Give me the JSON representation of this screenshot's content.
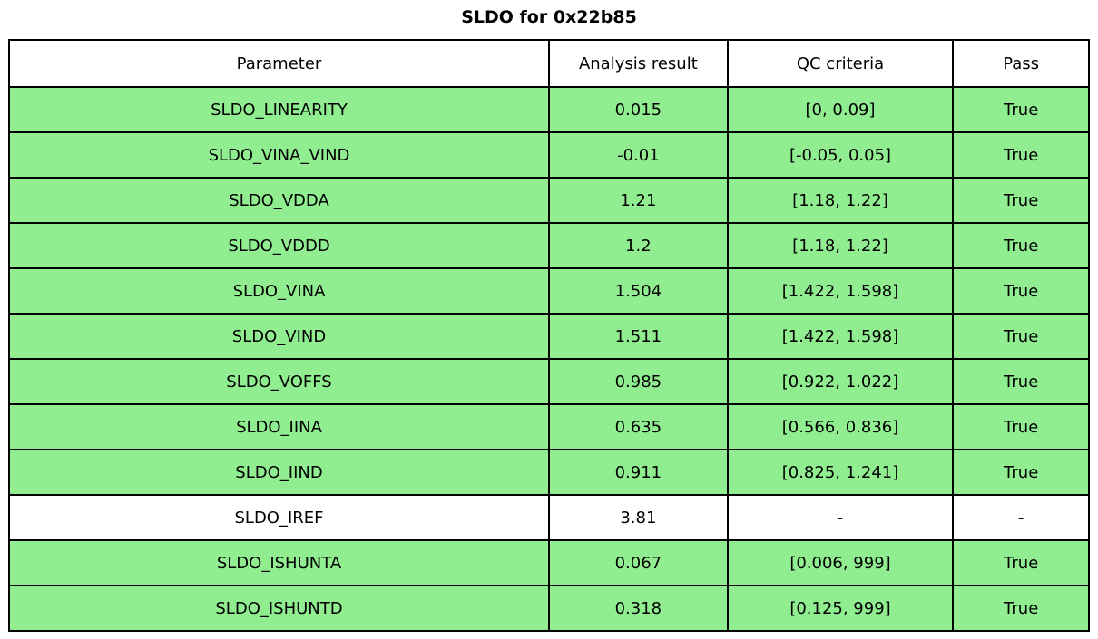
{
  "chart_data": {
    "type": "table",
    "title": "SLDO for 0x22b85",
    "columns": [
      "Parameter",
      "Analysis result",
      "QC criteria",
      "Pass"
    ],
    "rows": [
      {
        "parameter": "SLDO_LINEARITY",
        "result": "0.015",
        "criteria": "[0, 0.09]",
        "pass": "True",
        "highlight": true
      },
      {
        "parameter": "SLDO_VINA_VIND",
        "result": "-0.01",
        "criteria": "[-0.05, 0.05]",
        "pass": "True",
        "highlight": true
      },
      {
        "parameter": "SLDO_VDDA",
        "result": "1.21",
        "criteria": "[1.18, 1.22]",
        "pass": "True",
        "highlight": true
      },
      {
        "parameter": "SLDO_VDDD",
        "result": "1.2",
        "criteria": "[1.18, 1.22]",
        "pass": "True",
        "highlight": true
      },
      {
        "parameter": "SLDO_VINA",
        "result": "1.504",
        "criteria": "[1.422, 1.598]",
        "pass": "True",
        "highlight": true
      },
      {
        "parameter": "SLDO_VIND",
        "result": "1.511",
        "criteria": "[1.422, 1.598]",
        "pass": "True",
        "highlight": true
      },
      {
        "parameter": "SLDO_VOFFS",
        "result": "0.985",
        "criteria": "[0.922, 1.022]",
        "pass": "True",
        "highlight": true
      },
      {
        "parameter": "SLDO_IINA",
        "result": "0.635",
        "criteria": "[0.566, 0.836]",
        "pass": "True",
        "highlight": true
      },
      {
        "parameter": "SLDO_IIND",
        "result": "0.911",
        "criteria": "[0.825, 1.241]",
        "pass": "True",
        "highlight": true
      },
      {
        "parameter": "SLDO_IREF",
        "result": "3.81",
        "criteria": "-",
        "pass": "-",
        "highlight": false
      },
      {
        "parameter": "SLDO_ISHUNTA",
        "result": "0.067",
        "criteria": "[0.006, 999]",
        "pass": "True",
        "highlight": true
      },
      {
        "parameter": "SLDO_ISHUNTD",
        "result": "0.318",
        "criteria": "[0.125, 999]",
        "pass": "True",
        "highlight": true
      }
    ],
    "layout": {
      "legend": "none",
      "grid": "table-borders",
      "column_width_percents": [
        50.0,
        16.53,
        20.89,
        12.58
      ]
    },
    "colors": {
      "pass_row_bg": "#90ee90",
      "neutral_row_bg": "#ffffff",
      "border": "#000000",
      "text": "#000000"
    }
  }
}
